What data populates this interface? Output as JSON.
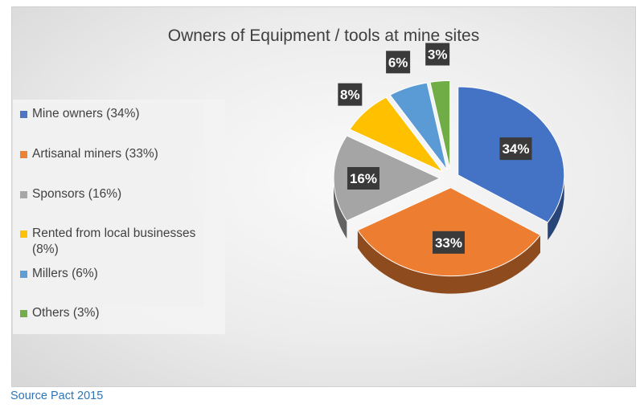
{
  "caption": "Source Pact 2015",
  "colors": {
    "mine_owners": "#4472c4",
    "artisanal_miners": "#ed7d31",
    "sponsors": "#a5a5a5",
    "rented": "#ffc000",
    "millers": "#5b9bd5",
    "others": "#70ad47",
    "label_bg": "#3a3a3a",
    "source": "#2e75b6"
  },
  "chart_data": {
    "type": "pie",
    "title": "Owners of Equipment / tools at mine sites",
    "legend_position": "left",
    "style": "3d-exploded",
    "slices": [
      {
        "legend": "Mine owners (34%)",
        "label": "34%",
        "value": 34,
        "color": "#4472c4"
      },
      {
        "legend": "Artisanal miners (33%)",
        "label": "33%",
        "value": 33,
        "color": "#ed7d31"
      },
      {
        "legend": "Sponsors (16%)",
        "label": "16%",
        "value": 16,
        "color": "#a5a5a5"
      },
      {
        "legend": "Rented from local businesses (8%)",
        "label": "8%",
        "value": 8,
        "color": "#ffc000"
      },
      {
        "legend": "Millers (6%)",
        "label": "6%",
        "value": 6,
        "color": "#5b9bd5"
      },
      {
        "legend": "Others (3%)",
        "label": "3%",
        "value": 3,
        "color": "#70ad47"
      }
    ]
  }
}
